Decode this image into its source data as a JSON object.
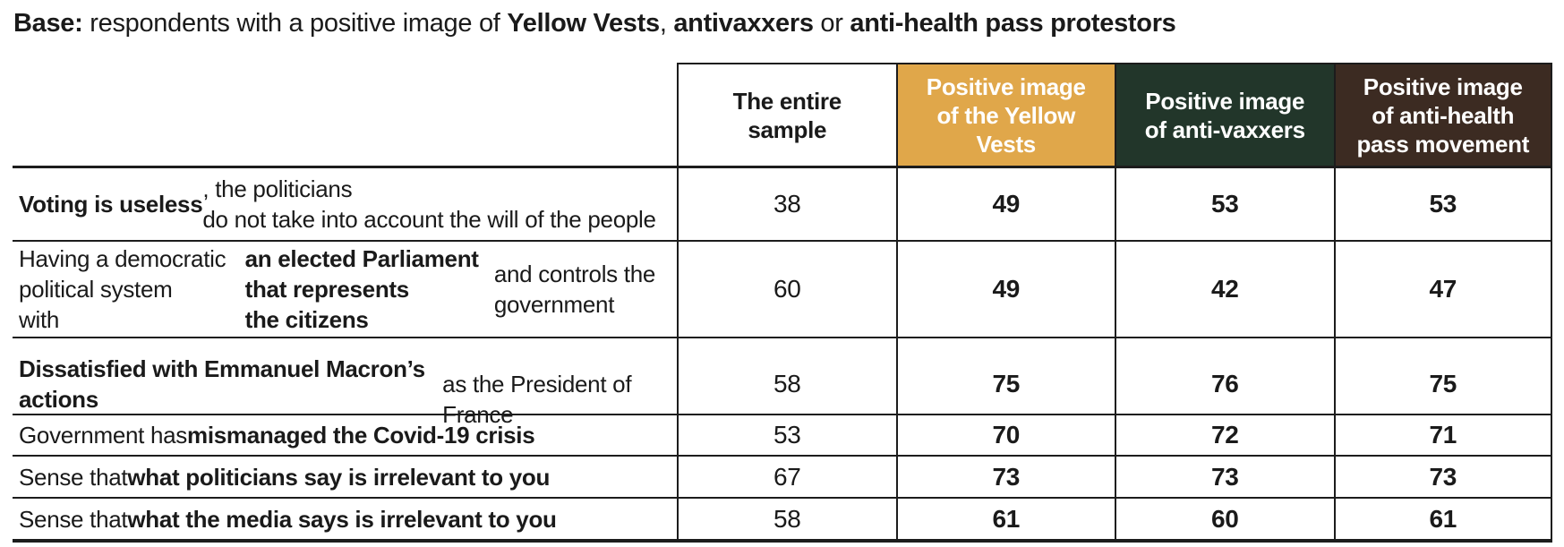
{
  "title": {
    "parts": [
      "Base:",
      " respondents with a positive image of ",
      "Yellow Vests",
      ", ",
      "antivaxxers",
      " or ",
      "anti-health pass protestors"
    ]
  },
  "colors": {
    "yellow_vests_header": "#e0a74a",
    "anti_vaxxers_header": "#22362a",
    "anti_health_pass_header": "#3c2b22",
    "text": "#1a1a1a",
    "grid_lines": "#1c1c1c"
  },
  "table": {
    "columns": [
      {
        "label": "The entire\nsample"
      },
      {
        "label": "Positive image\nof the Yellow\nVests"
      },
      {
        "label": "Positive image\nof anti-vaxxers"
      },
      {
        "label": "Positive image\nof anti-health\npass movement"
      }
    ],
    "rows": [
      {
        "parts": [
          "Voting is useless",
          ", the politicians\ndo not take into account the will of the people"
        ],
        "values": [
          "38",
          "49",
          "53",
          "53"
        ]
      },
      {
        "parts": [
          "Having a democratic political system\nwith ",
          "an elected Parliament that represents\nthe citizens",
          " and controls the government"
        ],
        "values": [
          "60",
          "49",
          "42",
          "47"
        ]
      },
      {
        "parts": [
          "Dissatisfied with Emmanuel Macron’s actions",
          "\nas the President of France"
        ],
        "values": [
          "58",
          "75",
          "76",
          "75"
        ]
      },
      {
        "parts": [
          "Government has ",
          "mismanaged the Covid-19 crisis"
        ],
        "values": [
          "53",
          "70",
          "72",
          "71"
        ]
      },
      {
        "parts": [
          "Sense that ",
          "what politicians say is irrelevant to you"
        ],
        "values": [
          "67",
          "73",
          "73",
          "73"
        ]
      },
      {
        "parts": [
          "Sense that ",
          "what the media says is irrelevant to you"
        ],
        "values": [
          "58",
          "61",
          "60",
          "61"
        ]
      }
    ]
  }
}
